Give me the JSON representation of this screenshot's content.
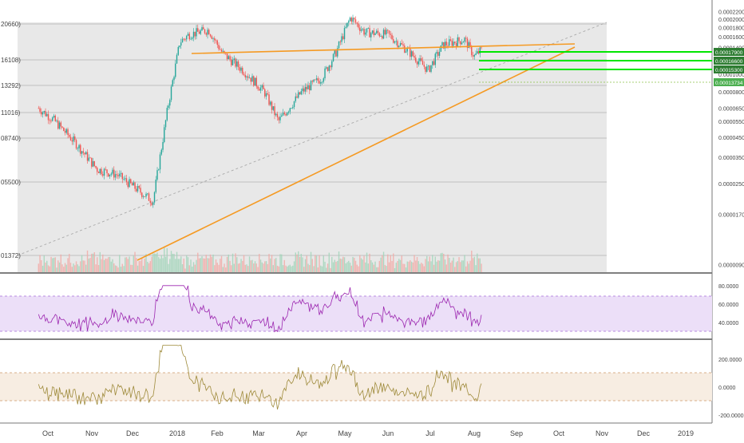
{
  "colors": {
    "up": "#26a69a",
    "down": "#ef5350",
    "trendline": "#f59a23",
    "dashed": "#aaaaaa",
    "level_line": "#00e600",
    "level_label_bg": "#2e7d32",
    "price_label_bg": "#4caf50",
    "rsi_line": "#9c27b0",
    "rsi_band": "#e9dcf7",
    "cci_line": "#9e8a3a",
    "cci_band": "#f5eadf",
    "main_bg": "#e8e8e8",
    "grid": "#b3b3b3",
    "axis_text": "#444444"
  },
  "chart_data": [
    {
      "type": "candlestick",
      "title": "",
      "x_axis_labels": [
        "Oct",
        "Nov",
        "Dec",
        "2018",
        "Feb",
        "Mar",
        "Apr",
        "May",
        "Jun",
        "Jul",
        "Aug",
        "Sep",
        "Oct",
        "Nov",
        "Dec",
        "2019"
      ],
      "y_axis_scale": "log",
      "y_ticks": [
        "0.00022000",
        "0.00020000",
        "0.00018000",
        "0.00016000",
        "0.00014000",
        "0.00012000",
        "0.00010000",
        "0.00008000",
        "0.00006500",
        "0.00005500",
        "0.00004500",
        "0.00003500",
        "0.00002500",
        "0.00001700",
        "0.00000900"
      ],
      "left_labels": [
        "20660)",
        "16108)",
        "13292)",
        "11016)",
        "08740)",
        "05500)",
        "01372)"
      ],
      "horizontal_levels": [
        "0.00017900",
        "0.00016600",
        "0.00015300"
      ],
      "current_price": "0.00013734",
      "annotations": [
        "ascending triangle (orange trendlines)",
        "dashed diagonal trendline"
      ],
      "close_series_approx": [
        [
          "2017-09-25",
          6.5e-05
        ],
        [
          "2017-10-05",
          5.6e-05
        ],
        [
          "2017-10-20",
          4.2e-05
        ],
        [
          "2017-11-05",
          3e-05
        ],
        [
          "2017-11-20",
          2.8e-05
        ],
        [
          "2017-12-05",
          2.3e-05
        ],
        [
          "2017-12-15",
          2e-05
        ],
        [
          "2017-12-25",
          6.5e-05
        ],
        [
          "2018-01-03",
          0.00015
        ],
        [
          "2018-01-10",
          0.000165
        ],
        [
          "2018-01-25",
          0.000175
        ],
        [
          "2018-02-05",
          0.00013
        ],
        [
          "2018-02-20",
          0.000105
        ],
        [
          "2018-03-05",
          8e-05
        ],
        [
          "2018-03-15",
          5.5e-05
        ],
        [
          "2018-04-01",
          8e-05
        ],
        [
          "2018-04-15",
          9.5e-05
        ],
        [
          "2018-04-25",
          0.00013
        ],
        [
          "2018-05-05",
          0.000205
        ],
        [
          "2018-05-15",
          0.00017
        ],
        [
          "2018-06-01",
          0.000165
        ],
        [
          "2018-06-15",
          0.000135
        ],
        [
          "2018-06-30",
          0.000105
        ],
        [
          "2018-07-10",
          0.000145
        ],
        [
          "2018-07-25",
          0.000155
        ],
        [
          "2018-08-01",
          0.000125
        ],
        [
          "2018-08-07",
          0.0001373
        ]
      ]
    },
    {
      "type": "line",
      "indicator": "RSI",
      "y_ticks": [
        "80.0000",
        "60.0000",
        "40.0000"
      ],
      "band": [
        30,
        70
      ]
    },
    {
      "type": "line",
      "indicator": "CCI",
      "y_ticks": [
        "200.0000",
        "0.0000",
        "-200.0000"
      ],
      "band": [
        -100,
        100
      ]
    }
  ]
}
